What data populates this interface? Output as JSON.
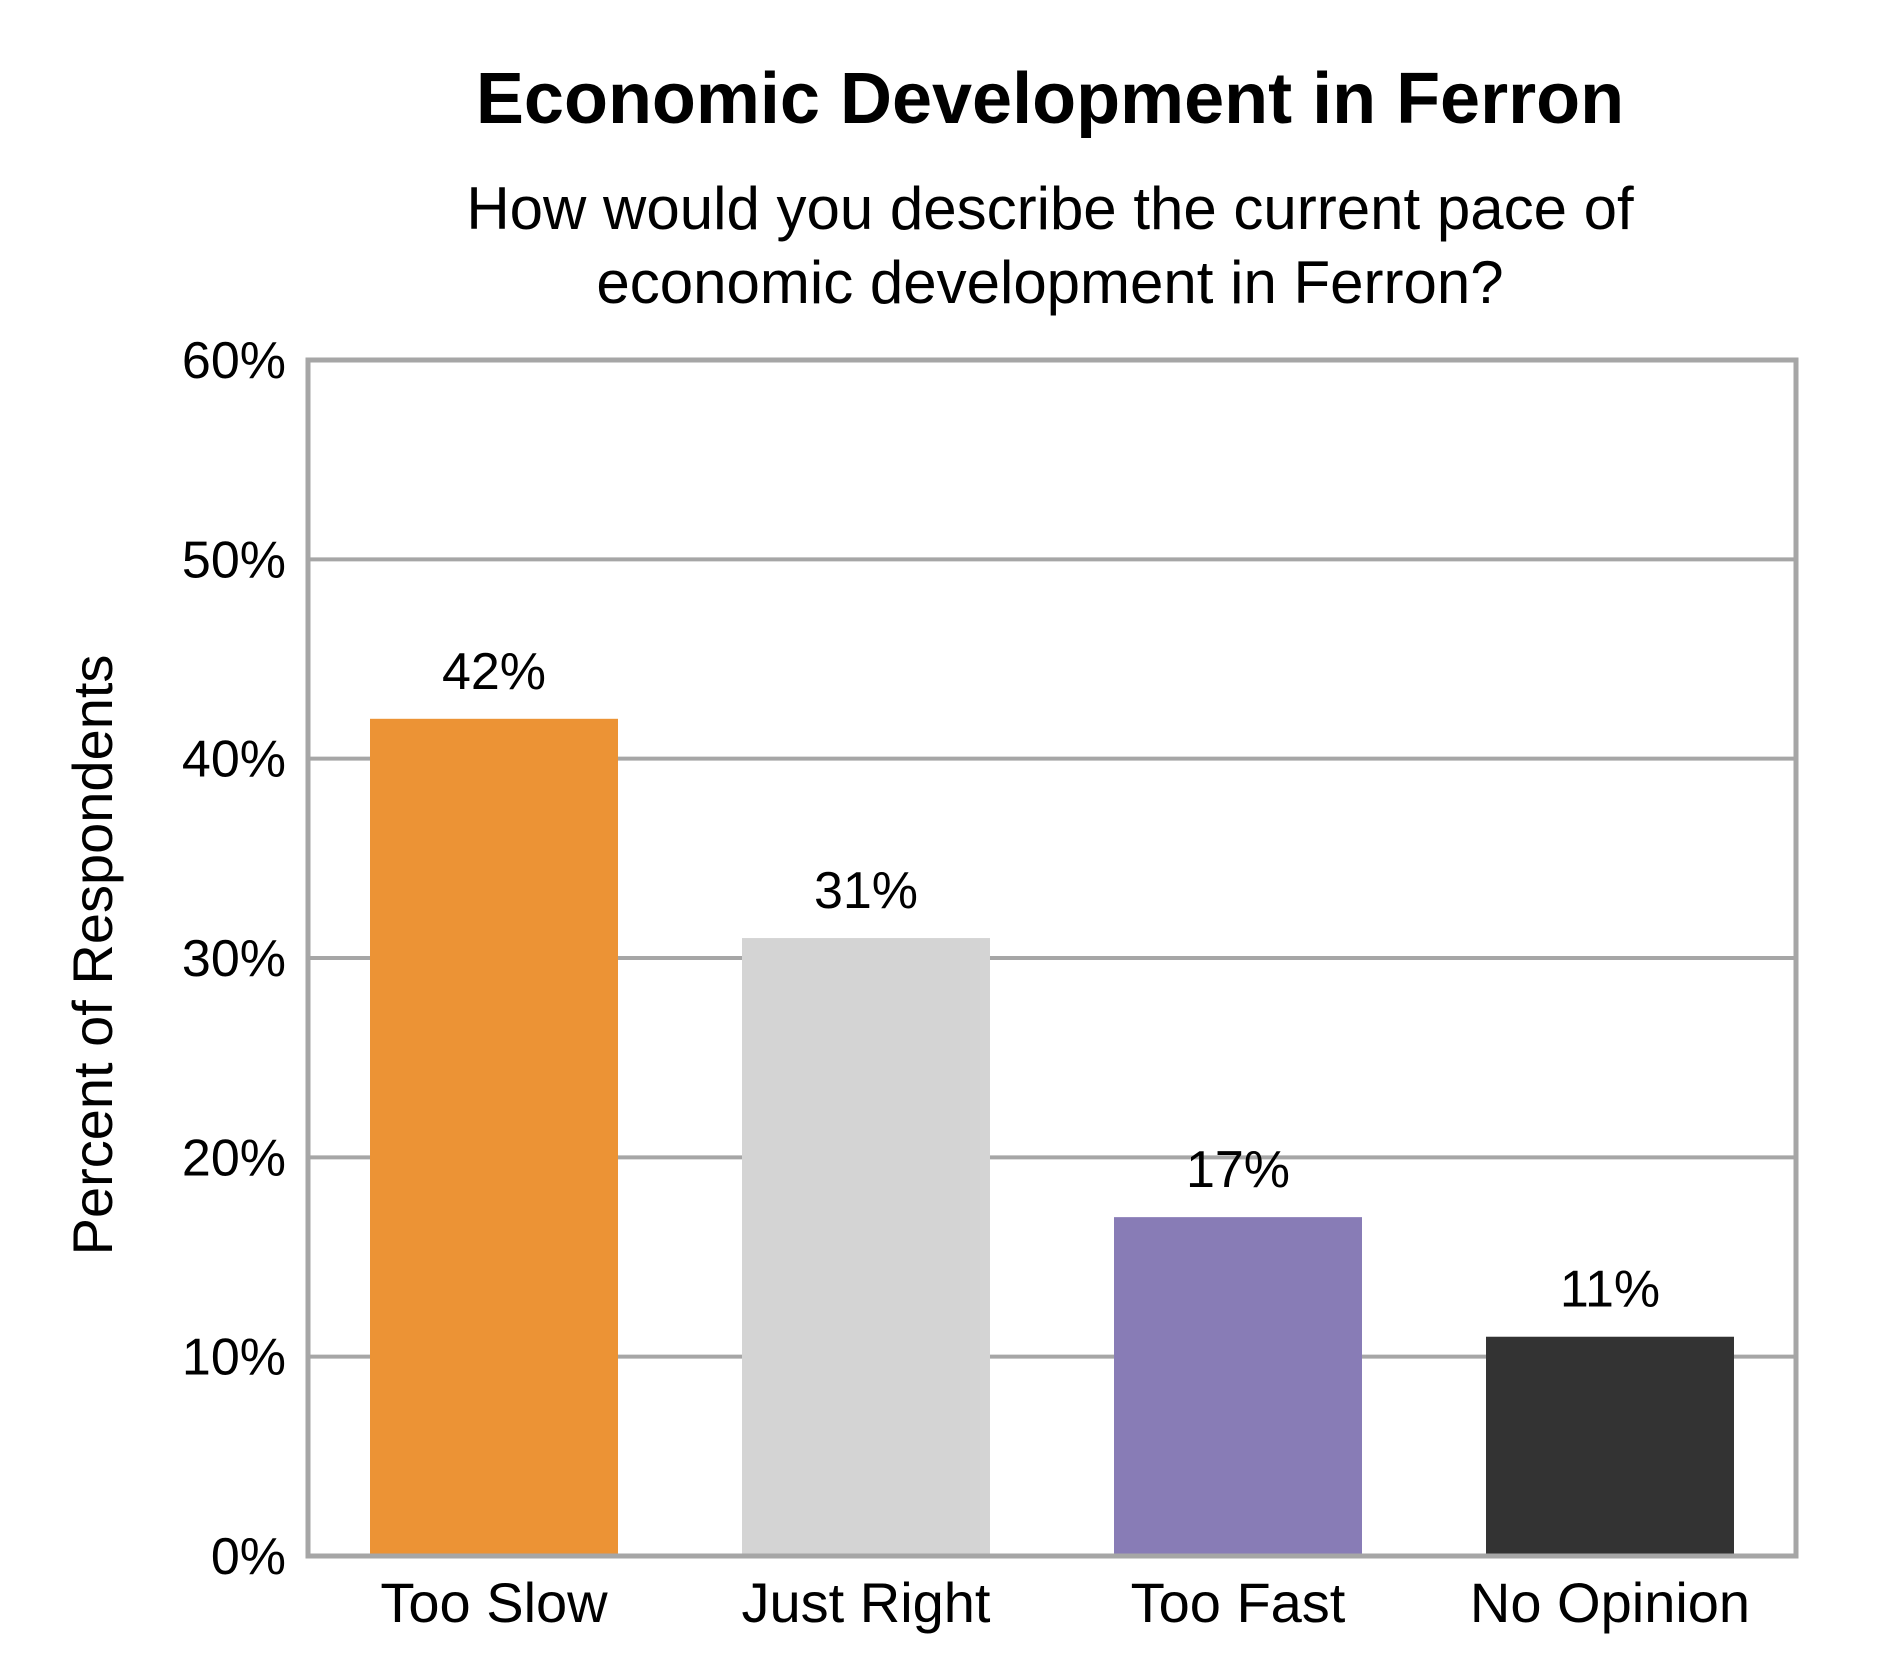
{
  "chart_data": {
    "type": "bar",
    "title": "Economic Development in Ferron",
    "subtitle": "How would you describe the current pace of economic development in Ferron?",
    "xlabel": "",
    "ylabel": "Percent of Respondents",
    "categories": [
      "Too Slow",
      "Just Right",
      "Too Fast",
      "No Opinion"
    ],
    "values": [
      42,
      31,
      17,
      11
    ],
    "value_labels": [
      "42%",
      "31%",
      "17%",
      "11%"
    ],
    "colors": [
      "#EC9335",
      "#D4D4D4",
      "#887CB6",
      "#333333"
    ],
    "ylim": [
      0,
      60
    ],
    "yticks": [
      0,
      10,
      20,
      30,
      40,
      50,
      60
    ],
    "ytick_labels": [
      "0%",
      "10%",
      "20%",
      "30%",
      "40%",
      "50%",
      "60%"
    ],
    "grid": true,
    "legend": "none"
  }
}
